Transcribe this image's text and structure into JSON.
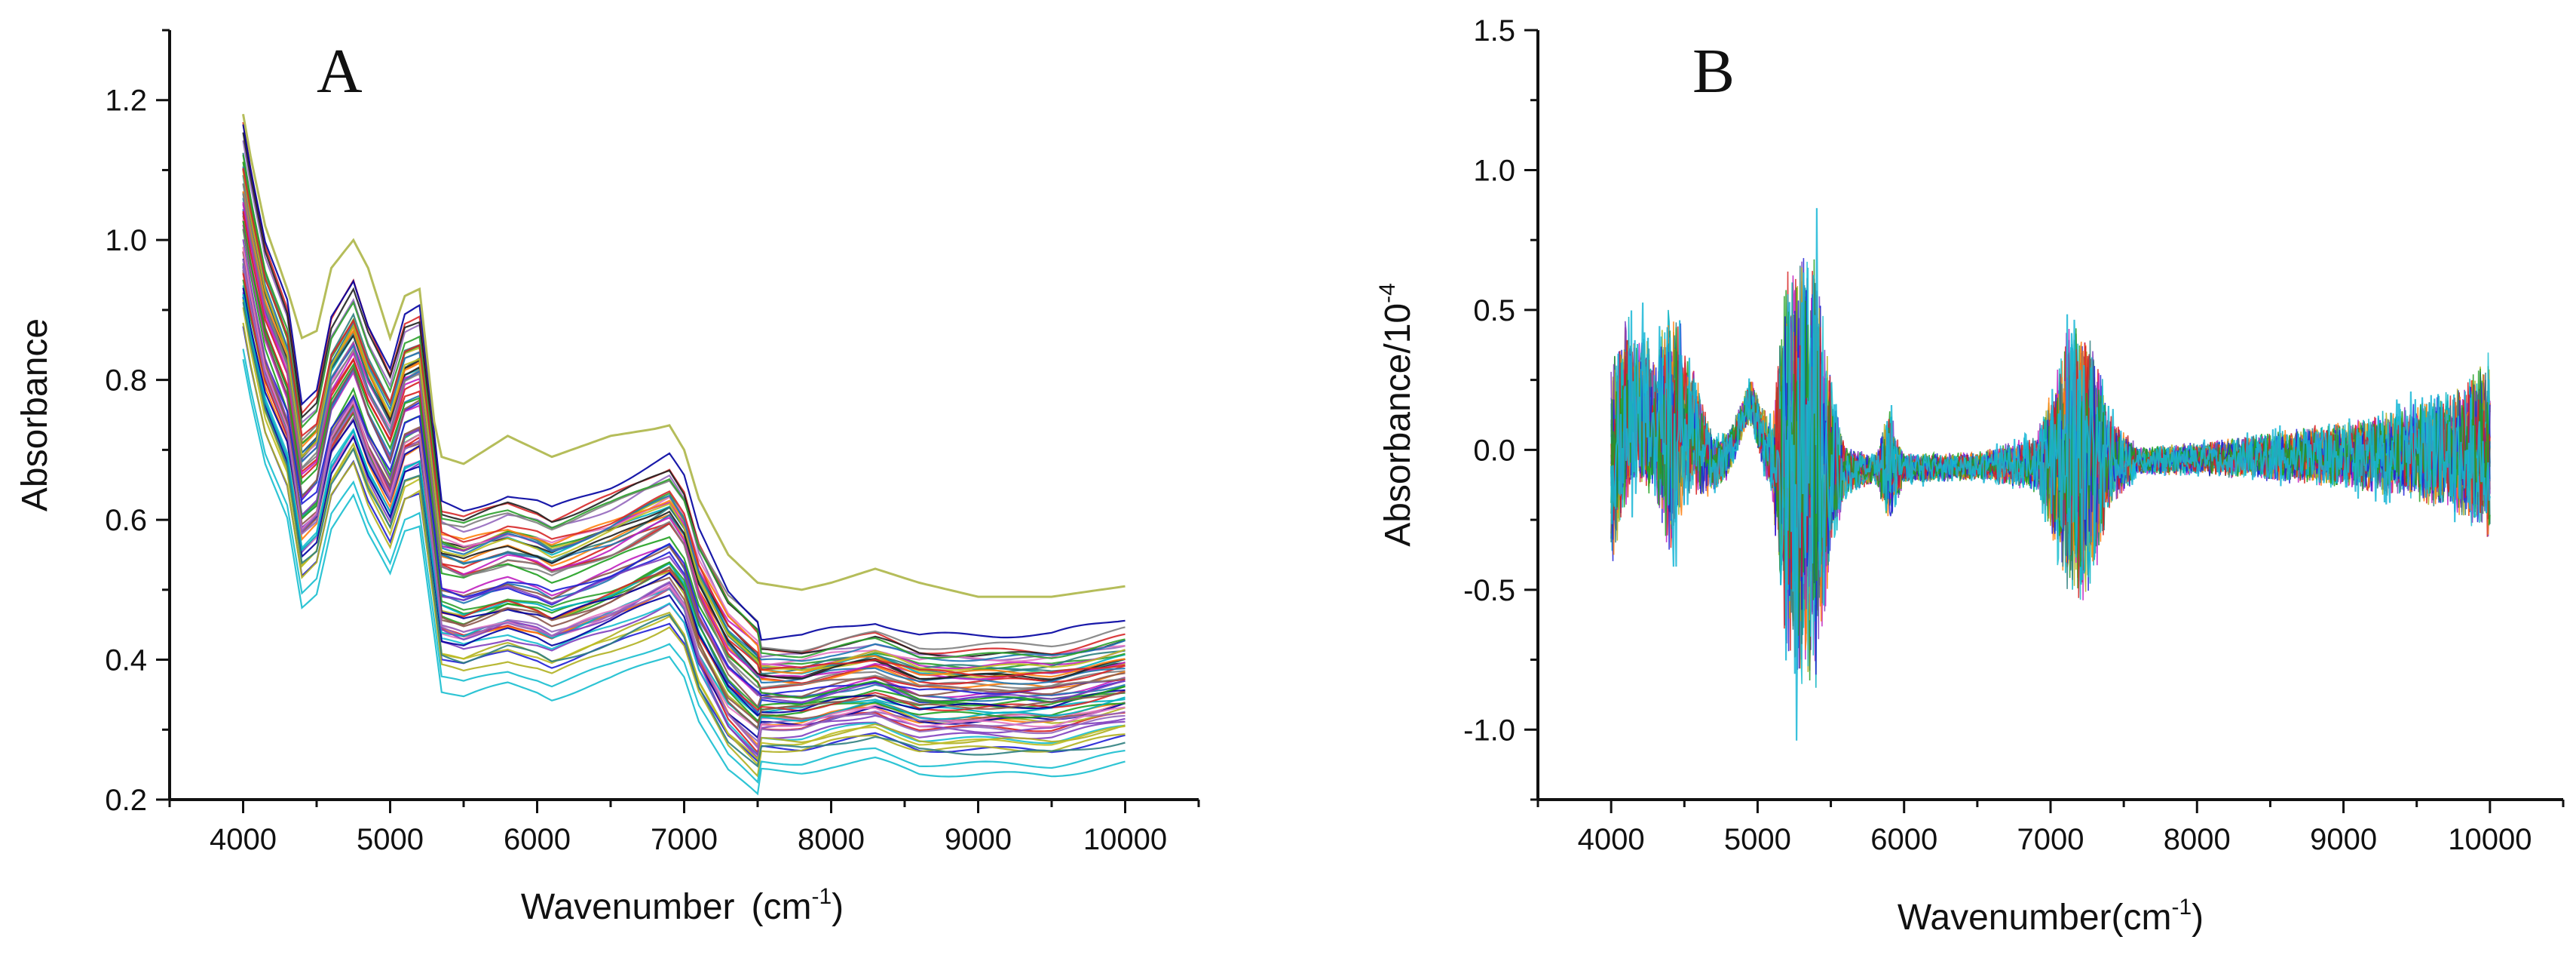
{
  "figure": {
    "panels": [
      "A",
      "B"
    ]
  },
  "chart_data": [
    {
      "type": "line",
      "panel_label": "A",
      "title": "",
      "xlabel": "Wavenumber",
      "xlabel_unit_base": "(cm",
      "xlabel_unit_exp": "-1",
      "xlabel_unit_close": ")",
      "ylabel": "Absorbance",
      "xlim": [
        3500,
        10500
      ],
      "ylim": [
        0.2,
        1.3
      ],
      "xticks": [
        4000,
        5000,
        6000,
        7000,
        8000,
        9000,
        10000
      ],
      "xtick_labels": [
        "4000",
        "5000",
        "6000",
        "7000",
        "8000",
        "9000",
        "10000"
      ],
      "yticks": [
        0.2,
        0.4,
        0.6,
        0.8,
        1.0,
        1.2
      ],
      "ytick_labels": [
        "0.2",
        "0.4",
        "0.6",
        "0.8",
        "1.0",
        "1.2"
      ],
      "n_series_approx": 60,
      "series_colors": [
        "#1f1fd6",
        "#d62020",
        "#20a020",
        "#c020c0",
        "#00b0c0",
        "#b0b020",
        "#202020",
        "#7f3fbf",
        "#ff7f0e",
        "#2f7f7f",
        "#8c564b",
        "#e377c2",
        "#7f7f7f",
        "#1f77b4",
        "#17becf",
        "#bcbd22",
        "#9467bd",
        "#2ca02c",
        "#d62728",
        "#0000a0"
      ],
      "outlier_color": "#b5bd5a",
      "mean_spectrum": {
        "x": [
          4000,
          4050,
          4150,
          4300,
          4400,
          4500,
          4600,
          4750,
          4850,
          5000,
          5100,
          5200,
          5300,
          5350,
          5500,
          5800,
          6000,
          6100,
          6500,
          6800,
          6900,
          7000,
          7100,
          7300,
          7500,
          7800,
          8000,
          8300,
          8600,
          9000,
          9500,
          10000
        ],
        "y": [
          1.02,
          0.96,
          0.86,
          0.78,
          0.64,
          0.66,
          0.76,
          0.81,
          0.75,
          0.69,
          0.76,
          0.77,
          0.6,
          0.51,
          0.5,
          0.52,
          0.51,
          0.5,
          0.53,
          0.56,
          0.57,
          0.54,
          0.47,
          0.39,
          0.35,
          0.35,
          0.36,
          0.37,
          0.35,
          0.35,
          0.35,
          0.37
        ]
      },
      "outlier_spectrum": {
        "x": [
          4000,
          4050,
          4150,
          4300,
          4400,
          4500,
          4600,
          4750,
          4850,
          5000,
          5100,
          5200,
          5300,
          5350,
          5500,
          5800,
          6000,
          6100,
          6500,
          6800,
          6900,
          7000,
          7100,
          7300,
          7500,
          7800,
          8000,
          8300,
          8600,
          9000,
          9500,
          10000
        ],
        "y": [
          1.18,
          1.12,
          1.02,
          0.93,
          0.86,
          0.87,
          0.96,
          1.0,
          0.96,
          0.86,
          0.92,
          0.93,
          0.74,
          0.69,
          0.68,
          0.72,
          0.7,
          0.69,
          0.72,
          0.73,
          0.735,
          0.7,
          0.63,
          0.55,
          0.51,
          0.5,
          0.51,
          0.53,
          0.51,
          0.49,
          0.49,
          0.505
        ]
      }
    },
    {
      "type": "line",
      "panel_label": "B",
      "title": "",
      "xlabel": "Wavenumber",
      "xlabel_unit_base": "(cm",
      "xlabel_unit_exp": "-1",
      "xlabel_unit_close": ")",
      "ylabel": "Absorbance/10",
      "ylabel_exp": "-4",
      "xlim": [
        3500,
        10500
      ],
      "ylim": [
        -1.25,
        1.5
      ],
      "xticks": [
        4000,
        5000,
        6000,
        7000,
        8000,
        9000,
        10000
      ],
      "xtick_labels": [
        "4000",
        "5000",
        "6000",
        "7000",
        "8000",
        "9000",
        "10000"
      ],
      "yticks": [
        -1.0,
        -0.5,
        0.0,
        0.5,
        1.0,
        1.5
      ],
      "ytick_labels": [
        "-1.0",
        "-0.5",
        "0.0",
        "0.5",
        "1.0",
        "1.5"
      ],
      "n_series_approx": 60,
      "series_colors": [
        "#1f1fd6",
        "#d62020",
        "#20a020",
        "#c020c0",
        "#b0b020",
        "#00b0c0",
        "#ff7f0e",
        "#7f3fbf",
        "#2f7f7f",
        "#17becf"
      ],
      "top_color": "#17b6d6",
      "noise_envelope": {
        "x": [
          4000,
          4100,
          4200,
          4300,
          4400,
          4500,
          4700,
          4900,
          5000,
          5100,
          5200,
          5300,
          5400,
          5500,
          5600,
          5800,
          5900,
          6000,
          6500,
          6900,
          7000,
          7100,
          7200,
          7300,
          7400,
          7600,
          8000,
          8500,
          9000,
          9500,
          9800,
          10000
        ],
        "amp": [
          0.45,
          0.4,
          0.35,
          0.3,
          0.55,
          0.35,
          0.12,
          0.08,
          0.12,
          0.15,
          0.85,
          0.9,
          0.95,
          0.4,
          0.1,
          0.06,
          0.25,
          0.06,
          0.06,
          0.12,
          0.3,
          0.55,
          0.6,
          0.5,
          0.2,
          0.06,
          0.07,
          0.1,
          0.14,
          0.2,
          0.28,
          0.4
        ]
      },
      "baseline": {
        "x": [
          4000,
          4100,
          4200,
          4300,
          4500,
          4600,
          4700,
          4800,
          4900,
          4950,
          5000,
          5100,
          5200,
          10000
        ],
        "y": [
          -0.05,
          0.12,
          0.15,
          0.08,
          0.1,
          0.02,
          -0.05,
          -0.02,
          0.12,
          0.18,
          0.1,
          -0.05,
          -0.08,
          0.0
        ]
      }
    }
  ]
}
